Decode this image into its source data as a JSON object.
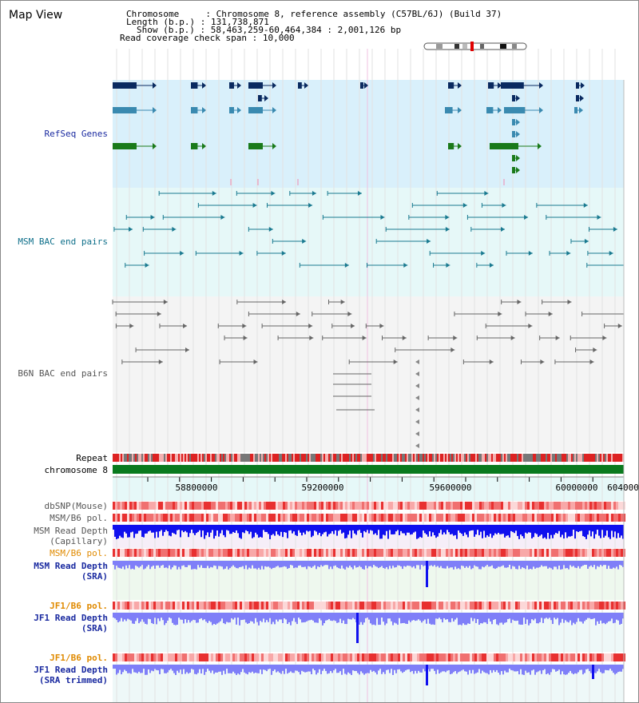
{
  "page": {
    "title": "Map View"
  },
  "info": {
    "chromosome_label": "Chromosome",
    "chromosome_value": "Chromosome 8, reference assembly (C57BL/6J) (Build 37)",
    "length_label": "Length (b.p.)",
    "length_value": "131,738,871",
    "show_label": "Show (b.p.)",
    "show_value": "58,463,259-60,464,384 : 2,001,126 bp",
    "coverage_label": "Read coverage check span",
    "coverage_value": "10,000"
  },
  "tracks": {
    "refseq": "RefSeq Genes",
    "msm_bac": "MSM BAC end pairs",
    "b6n_bac": "B6N BAC end pairs",
    "repeat": "Repeat",
    "chromosome": "chromosome 8",
    "dbsnp": "dbSNP(Mouse)",
    "msm_b6_pol_1": "MSM/B6 pol.",
    "msm_read_depth_cap": "MSM Read Depth\n(Capillary)",
    "msm_b6_pol_2": "MSM/B6 pol.",
    "msm_read_depth_sra": "MSM Read Depth\n(SRA)",
    "jf1_b6_pol_1": "JF1/B6 pol.",
    "jf1_read_depth_sra": "JF1 Read Depth\n(SRA)",
    "jf1_b6_pol_2": "JF1/B6 pol.",
    "jf1_read_depth_trim": "JF1 Read Depth\n(SRA trimmed)"
  },
  "axis": {
    "ticks": [
      "58800000",
      "59200000",
      "59600000",
      "60000000",
      "604000"
    ]
  },
  "colors": {
    "refseq_bg": "#d9f0fb",
    "msm_bg": "#e6f8f8",
    "b6n_bg": "#f4f4f4",
    "chromosome_bar": "#0a7a1e",
    "read_depth_blue": "#1010ee",
    "read_depth_light": "#7f7ff8",
    "label_blue_dark": "#1a2aa0",
    "label_teal": "#0e6f8a",
    "label_orange": "#e08a00",
    "label_gray": "#555555"
  }
}
